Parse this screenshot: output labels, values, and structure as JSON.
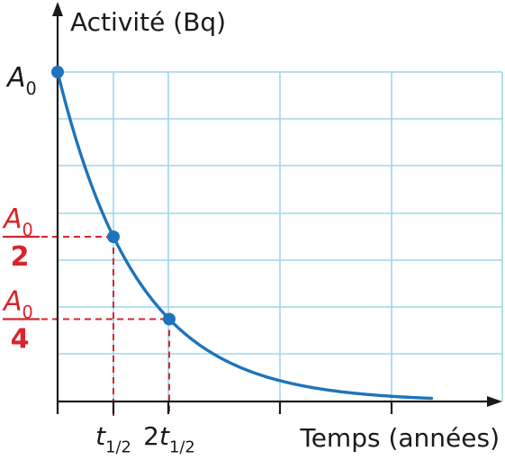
{
  "chart_data": {
    "type": "line",
    "ylabel": "Activité (Bq)",
    "xlabel": "Temps (années)",
    "y_axis_start_label": {
      "base": "A",
      "sub": "0"
    },
    "grid": true,
    "x_ticks": [
      {
        "value": 1,
        "text": "t",
        "sub": "1/2",
        "prefix": ""
      },
      {
        "value": 2,
        "text": "t",
        "sub": "1/2",
        "prefix": "2"
      }
    ],
    "y_fraction_labels": [
      {
        "value": 0.5,
        "num_base": "A",
        "num_sub": "0",
        "den": "2"
      },
      {
        "value": 0.25,
        "num_base": "A",
        "num_sub": "0",
        "den": "4"
      }
    ],
    "xlim": [
      0,
      8.4
    ],
    "ylim": [
      0,
      1.1
    ],
    "curve": {
      "type": "exponential_decay",
      "x_start": 0,
      "x_end": 6.7,
      "y0": 1,
      "half_life": 1
    },
    "points": [
      {
        "x": 0,
        "y": 1
      },
      {
        "x": 1,
        "y": 0.5
      },
      {
        "x": 2,
        "y": 0.25
      }
    ],
    "colors": {
      "curve": "#1e74bb",
      "grid": "#9fd6ee",
      "axis": "#1a1a1a",
      "guide": "#d8242c",
      "label_red": "#d8242c"
    }
  }
}
